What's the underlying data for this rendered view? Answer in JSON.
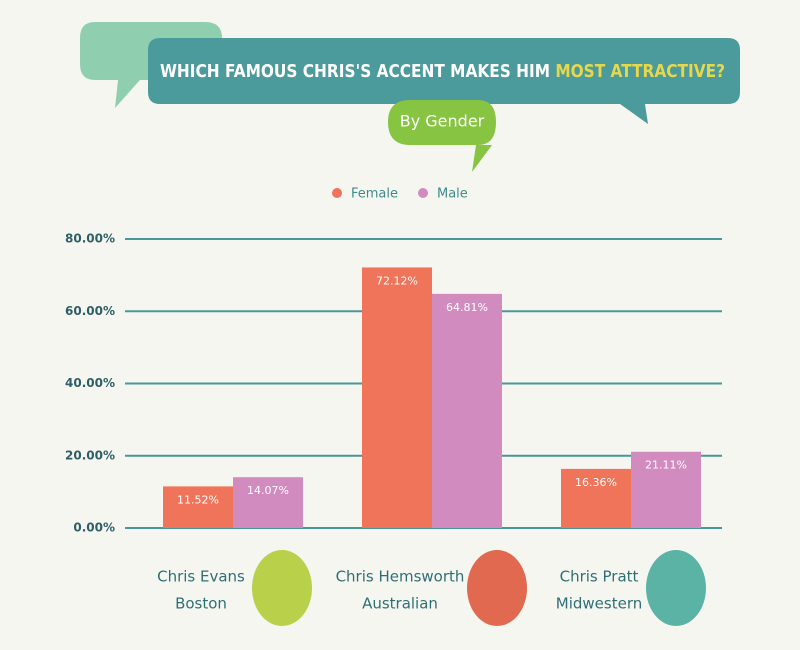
{
  "chart_data": {
    "type": "bar",
    "title": [
      "WHICH FAMOUS CHRIS'S ACCENT MAKES HIM",
      "MOST ATTRACTIVE?"
    ],
    "subtitle": "By Gender",
    "categories": [
      "Chris Evans",
      "Chris Hemsworth",
      "Chris Pratt"
    ],
    "category_sublabels": [
      "Boston",
      "Australian",
      "Midwestern"
    ],
    "series": [
      {
        "name": "Female",
        "color": "#ef7459",
        "values": [
          11.52,
          72.12,
          16.36
        ],
        "value_labels": [
          "11.52%",
          "72.12%",
          "16.36%"
        ]
      },
      {
        "name": "Male",
        "color": "#d28bbf",
        "values": [
          14.07,
          64.81,
          21.11
        ],
        "value_labels": [
          "14.07%",
          "64.81%",
          "21.11%"
        ]
      }
    ],
    "ylim": [
      0,
      80
    ],
    "yticks": [
      {
        "value": 0,
        "label": "0.00%"
      },
      {
        "value": 20,
        "label": "20.00%"
      },
      {
        "value": 40,
        "label": "40.00%"
      },
      {
        "value": 60,
        "label": "60.00%"
      },
      {
        "value": 80,
        "label": "80.00%"
      }
    ],
    "grid": true
  }
}
